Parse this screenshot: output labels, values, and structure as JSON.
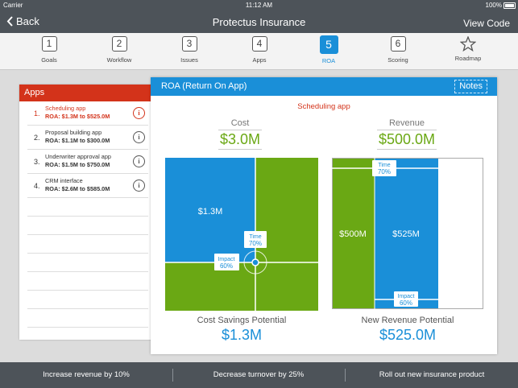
{
  "status_bar": {
    "carrier": "Carrier",
    "time": "11:12 AM",
    "battery": "100%"
  },
  "nav": {
    "back_label": "Back",
    "title": "Protectus Insurance",
    "view_code_label": "View Code"
  },
  "steps": [
    {
      "num": "1",
      "label": "Goals"
    },
    {
      "num": "2",
      "label": "Workflow"
    },
    {
      "num": "3",
      "label": "Issues"
    },
    {
      "num": "4",
      "label": "Apps"
    },
    {
      "num": "5",
      "label": "ROA"
    },
    {
      "num": "6",
      "label": "Scoring"
    },
    {
      "num": "",
      "label": "Roadmap"
    }
  ],
  "active_step": "ROA",
  "apps_panel": {
    "title": "Apps",
    "items": [
      {
        "index": "1.",
        "name": "Scheduling app",
        "roa": "ROA: $1.3M to $525.0M"
      },
      {
        "index": "2.",
        "name": "Proposal building app",
        "roa": "ROA: $1.1M to $300.0M"
      },
      {
        "index": "3.",
        "name": "Underwriter approval app",
        "roa": "ROA: $1.5M to $750.0M"
      },
      {
        "index": "4.",
        "name": "CRM interface",
        "roa": "ROA: $2.6M to $585.0M"
      }
    ],
    "info_glyph": "i"
  },
  "roa_panel": {
    "title": "ROA (Return On App)",
    "notes_label": "Notes",
    "selected_app": "Scheduling app",
    "cost": {
      "title": "Cost",
      "value": "$3.0M"
    },
    "revenue": {
      "title": "Revenue",
      "value": "$500.0M"
    },
    "cost_chart": {
      "savings_label": "$1.3M",
      "time_label": "Time",
      "time_value": "70%",
      "time_fraction": 0.7,
      "impact_label": "Impact",
      "impact_value": "60%",
      "impact_fraction": 0.6
    },
    "revenue_chart": {
      "base_label": "$500M",
      "new_label": "$525M",
      "time_label": "Time",
      "time_value": "70%",
      "time_fraction": 0.7,
      "impact_label": "Impact",
      "impact_value": "60%",
      "impact_fraction": 0.6
    },
    "cost_savings": {
      "title": "Cost Savings Potential",
      "value": "$1.3M"
    },
    "new_revenue": {
      "title": "New Revenue Potential",
      "value": "$525.0M"
    }
  },
  "footer": {
    "items": [
      "Increase revenue by 10%",
      "Decrease turnover by 25%",
      "Roll out new insurance product"
    ]
  },
  "colors": {
    "accent_blue": "#1a8fd8",
    "accent_red": "#d3331a",
    "green": "#6aa814",
    "dark_bar": "#4d5359"
  }
}
